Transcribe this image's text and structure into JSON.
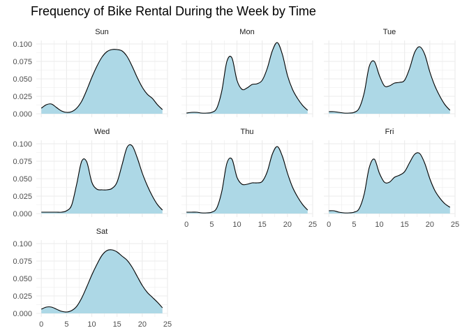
{
  "chart_data": {
    "type": "area",
    "title": "Frequency of Bike Rental During the Week by Time",
    "xlabel": "",
    "ylabel": "",
    "xlim": [
      0,
      24
    ],
    "ylim": [
      0,
      0.1
    ],
    "x_ticks": [
      "0",
      "5",
      "10",
      "15",
      "20",
      "25"
    ],
    "x_tick_values": [
      0,
      5,
      10,
      15,
      20,
      25
    ],
    "y_ticks": [
      "0.000",
      "0.025",
      "0.050",
      "0.075",
      "0.100"
    ],
    "y_tick_values": [
      0,
      0.025,
      0.05,
      0.075,
      0.1
    ],
    "fill_color": "#add8e6",
    "line_color": "#000000",
    "grid_color": "#ebebeb",
    "grid": true,
    "panels": [
      {
        "name": "Sun",
        "x": [
          0,
          1,
          2,
          3,
          4,
          5,
          6,
          7,
          8,
          9,
          10,
          11,
          12,
          13,
          14,
          15,
          16,
          17,
          18,
          19,
          20,
          21,
          22,
          23,
          24
        ],
        "y": [
          0.008,
          0.013,
          0.014,
          0.009,
          0.004,
          0.002,
          0.003,
          0.008,
          0.018,
          0.034,
          0.052,
          0.068,
          0.081,
          0.089,
          0.092,
          0.092,
          0.09,
          0.082,
          0.068,
          0.052,
          0.038,
          0.028,
          0.022,
          0.013,
          0.006
        ]
      },
      {
        "name": "Mon",
        "x": [
          0,
          1,
          2,
          3,
          4,
          5,
          6,
          7,
          8,
          9,
          10,
          11,
          12,
          13,
          14,
          15,
          16,
          17,
          18,
          19,
          20,
          21,
          22,
          23,
          24
        ],
        "y": [
          0.001,
          0.002,
          0.002,
          0.001,
          0.001,
          0.002,
          0.008,
          0.033,
          0.075,
          0.08,
          0.048,
          0.035,
          0.037,
          0.042,
          0.043,
          0.048,
          0.065,
          0.09,
          0.102,
          0.085,
          0.055,
          0.035,
          0.022,
          0.012,
          0.005
        ]
      },
      {
        "name": "Tue",
        "x": [
          0,
          1,
          2,
          3,
          4,
          5,
          6,
          7,
          8,
          9,
          10,
          11,
          12,
          13,
          14,
          15,
          16,
          17,
          18,
          19,
          20,
          21,
          22,
          23,
          24
        ],
        "y": [
          0.003,
          0.003,
          0.002,
          0.001,
          0.001,
          0.002,
          0.008,
          0.03,
          0.068,
          0.075,
          0.055,
          0.04,
          0.04,
          0.044,
          0.045,
          0.048,
          0.065,
          0.088,
          0.096,
          0.085,
          0.06,
          0.04,
          0.025,
          0.013,
          0.005
        ]
      },
      {
        "name": "Wed",
        "x": [
          0,
          1,
          2,
          3,
          4,
          5,
          6,
          7,
          8,
          9,
          10,
          11,
          12,
          13,
          14,
          15,
          16,
          17,
          18,
          19,
          20,
          21,
          22,
          23,
          24
        ],
        "y": [
          0.002,
          0.002,
          0.002,
          0.002,
          0.002,
          0.004,
          0.012,
          0.042,
          0.075,
          0.074,
          0.045,
          0.035,
          0.034,
          0.034,
          0.036,
          0.045,
          0.07,
          0.095,
          0.097,
          0.08,
          0.058,
          0.04,
          0.025,
          0.013,
          0.005
        ]
      },
      {
        "name": "Thu",
        "x": [
          0,
          1,
          2,
          3,
          4,
          5,
          6,
          7,
          8,
          9,
          10,
          11,
          12,
          13,
          14,
          15,
          16,
          17,
          18,
          19,
          20,
          21,
          22,
          23,
          24
        ],
        "y": [
          0.002,
          0.002,
          0.002,
          0.001,
          0.001,
          0.002,
          0.008,
          0.032,
          0.072,
          0.078,
          0.052,
          0.042,
          0.042,
          0.044,
          0.044,
          0.046,
          0.06,
          0.085,
          0.096,
          0.082,
          0.058,
          0.038,
          0.024,
          0.013,
          0.005
        ]
      },
      {
        "name": "Fri",
        "x": [
          0,
          1,
          2,
          3,
          4,
          5,
          6,
          7,
          8,
          9,
          10,
          11,
          12,
          13,
          14,
          15,
          16,
          17,
          18,
          19,
          20,
          21,
          22,
          23,
          24
        ],
        "y": [
          0.004,
          0.004,
          0.002,
          0.001,
          0.001,
          0.002,
          0.007,
          0.028,
          0.066,
          0.078,
          0.058,
          0.045,
          0.045,
          0.052,
          0.055,
          0.06,
          0.073,
          0.085,
          0.086,
          0.072,
          0.05,
          0.033,
          0.022,
          0.014,
          0.009
        ]
      },
      {
        "name": "Sat",
        "x": [
          0,
          1,
          2,
          3,
          4,
          5,
          6,
          7,
          8,
          9,
          10,
          11,
          12,
          13,
          14,
          15,
          16,
          17,
          18,
          19,
          20,
          21,
          22,
          23,
          24
        ],
        "y": [
          0.006,
          0.009,
          0.009,
          0.006,
          0.003,
          0.002,
          0.004,
          0.01,
          0.022,
          0.038,
          0.055,
          0.07,
          0.083,
          0.09,
          0.091,
          0.088,
          0.082,
          0.076,
          0.066,
          0.053,
          0.04,
          0.03,
          0.023,
          0.016,
          0.008
        ]
      }
    ]
  }
}
